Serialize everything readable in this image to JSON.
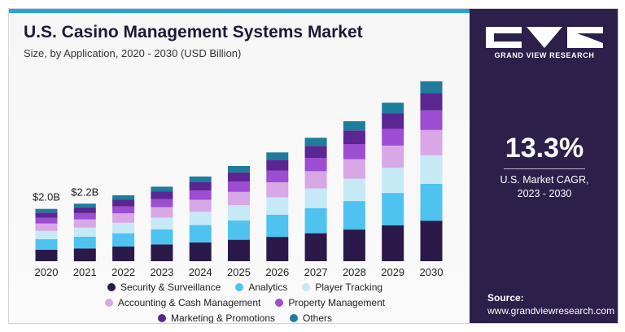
{
  "header": {
    "title": "U.S. Casino Management Systems Market",
    "subtitle": "Size, by Application, 2020 - 2030 (USD Billion)"
  },
  "brand": {
    "name": "GRAND VIEW RESEARCH",
    "cagr_value": "13.3%",
    "cagr_line1": "U.S. Market CAGR,",
    "cagr_line2": "2023 - 2030",
    "source_label": "Source:",
    "source_url": "www.grandviewresearch.com",
    "panel_color": "#2c1f4a",
    "accent_color": "#2aa3d8"
  },
  "chart_data": {
    "type": "bar",
    "stacked": true,
    "title": "U.S. Casino Management Systems Market",
    "subtitle": "Size, by Application, 2020 - 2030 (USD Billion)",
    "categories": [
      "2020",
      "2021",
      "2022",
      "2023",
      "2024",
      "2025",
      "2026",
      "2027",
      "2028",
      "2029",
      "2030"
    ],
    "series": [
      {
        "name": "Security & Surveillance",
        "color": "#2b1a49",
        "values": [
          0.44,
          0.49,
          0.56,
          0.64,
          0.72,
          0.82,
          0.93,
          1.07,
          1.21,
          1.37,
          1.55
        ]
      },
      {
        "name": "Analytics",
        "color": "#4fc3ef",
        "values": [
          0.4,
          0.45,
          0.51,
          0.58,
          0.66,
          0.74,
          0.85,
          0.96,
          1.09,
          1.24,
          1.41
        ]
      },
      {
        "name": "Player Tracking",
        "color": "#c6e9f6",
        "values": [
          0.32,
          0.35,
          0.4,
          0.45,
          0.51,
          0.58,
          0.66,
          0.75,
          0.85,
          0.96,
          1.09
        ]
      },
      {
        "name": "Accounting & Cash Management",
        "color": "#d8a8e6",
        "values": [
          0.28,
          0.31,
          0.36,
          0.4,
          0.46,
          0.51,
          0.58,
          0.66,
          0.75,
          0.85,
          0.97
        ]
      },
      {
        "name": "Property Management",
        "color": "#9c4dd2",
        "values": [
          0.22,
          0.24,
          0.27,
          0.31,
          0.35,
          0.39,
          0.45,
          0.51,
          0.58,
          0.65,
          0.74
        ]
      },
      {
        "name": "Marketing & Promotions",
        "color": "#5b2691",
        "values": [
          0.2,
          0.22,
          0.25,
          0.28,
          0.32,
          0.36,
          0.41,
          0.46,
          0.52,
          0.59,
          0.67
        ]
      },
      {
        "name": "Others",
        "color": "#1e7d9c",
        "values": [
          0.14,
          0.14,
          0.17,
          0.19,
          0.22,
          0.24,
          0.28,
          0.31,
          0.35,
          0.4,
          0.45
        ]
      }
    ],
    "bar_labels": [
      {
        "category": "2020",
        "text": "$2.0B"
      },
      {
        "category": "2021",
        "text": "$2.2B"
      }
    ],
    "ylim": [
      0,
      7.0
    ],
    "grid": false,
    "legend_position": "bottom"
  }
}
